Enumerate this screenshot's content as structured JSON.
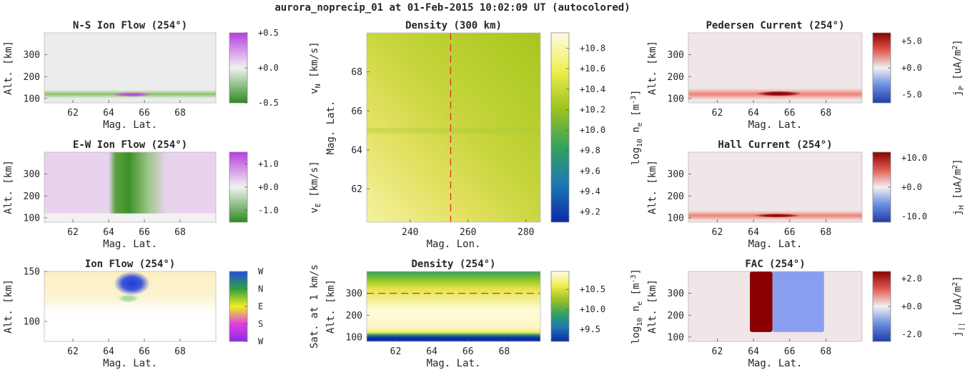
{
  "figure_title": "aurora_noprecip_01 at 01-Feb-2015 10:02:09 UT (autocolored)",
  "chart_data": [
    {
      "id": "ns-ion-flow",
      "type": "heatmap",
      "title": "N-S Ion Flow (254°)",
      "xlabel": "Mag. Lat.",
      "ylabel": "Alt. [km]",
      "xlim": [
        60.4,
        70
      ],
      "ylim": [
        80,
        400
      ],
      "xticks": [
        "62",
        "64",
        "66",
        "68"
      ],
      "xtick_values": [
        62,
        64,
        66,
        68
      ],
      "yticks": [
        "100",
        "200",
        "300"
      ],
      "ytick_values": [
        100,
        200,
        300
      ],
      "colorbar": {
        "label_main": "v",
        "label_sub": "N",
        "label_unit": " [km/s]",
        "range": [
          -0.5,
          0.5
        ],
        "ticks": [
          "+0.5",
          "+0.0",
          "-0.5"
        ],
        "tick_values": [
          0.5,
          0.0,
          -0.5
        ],
        "colors": [
          "#2e8b1e",
          "#f2f2f2",
          "#b63fe0"
        ]
      },
      "features": [
        {
          "shape": "band",
          "y": 120,
          "thickness": 6,
          "color": "#7fbf5a",
          "opacity": 0.9
        },
        {
          "shape": "blob",
          "x": 65.3,
          "y": 118,
          "rx": 1.1,
          "ry": 10,
          "color": "#c040e8",
          "opacity": 0.95
        }
      ],
      "background": "#ececec"
    },
    {
      "id": "ew-ion-flow",
      "type": "heatmap",
      "title": "E-W Ion Flow (254°)",
      "xlabel": "Mag. Lat.",
      "ylabel": "Alt. [km]",
      "xlim": [
        60.4,
        70
      ],
      "ylim": [
        80,
        400
      ],
      "xticks": [
        "62",
        "64",
        "66",
        "68"
      ],
      "xtick_values": [
        62,
        64,
        66,
        68
      ],
      "yticks": [
        "100",
        "200",
        "300"
      ],
      "ytick_values": [
        100,
        200,
        300
      ],
      "colorbar": {
        "label_main": "v",
        "label_sub": "E",
        "label_unit": " [km/s]",
        "range": [
          -1.5,
          1.5
        ],
        "ticks": [
          "+1.0",
          "+0.0",
          "-1.0"
        ],
        "tick_values": [
          1.0,
          0.0,
          -1.0
        ],
        "colors": [
          "#2e8b1e",
          "#f2f2f2",
          "#b63fe0"
        ]
      },
      "features": [
        {
          "shape": "region",
          "x0": 60.4,
          "x1": 70,
          "y0": 120,
          "y1": 400,
          "color": "#e8d2ee"
        },
        {
          "shape": "vgrad",
          "x0": 64,
          "x1": 67.2,
          "y0": 120,
          "y1": 400,
          "stops": [
            [
              "0",
              "#e8d2ee"
            ],
            [
              "0.12",
              "#5aa33e"
            ],
            [
              "0.35",
              "#3c8f28"
            ],
            [
              "0.7",
              "#9cc88a"
            ],
            [
              "1",
              "#e8d2ee"
            ]
          ]
        }
      ],
      "background": "#f2f2f2"
    },
    {
      "id": "ion-flow",
      "type": "heatmap",
      "title": "Ion Flow (254°)",
      "xlabel": "Mag. Lat.",
      "ylabel": "Alt. [km]",
      "xlim": [
        60.4,
        70
      ],
      "ylim": [
        80,
        150
      ],
      "xticks": [
        "62",
        "64",
        "66",
        "68"
      ],
      "xtick_values": [
        62,
        64,
        66,
        68
      ],
      "yticks": [
        "100",
        "150"
      ],
      "ytick_values": [
        100,
        150
      ],
      "colorbar": {
        "label_main": "Sat. at 1 km/s",
        "label_sub": "",
        "label_unit": "",
        "range": [
          0,
          4
        ],
        "ticks": [
          "W",
          "N",
          "E",
          "S",
          "W"
        ],
        "tick_values": [
          4,
          3,
          2,
          1,
          0
        ],
        "colors": [
          "#8a2be2",
          "#e040e0",
          "#f0f020",
          "#30a040",
          "#2050e0"
        ]
      },
      "features": [
        {
          "shape": "region",
          "x0": 60.4,
          "x1": 70,
          "y0": 128,
          "y1": 150,
          "color": "#faf0c0"
        },
        {
          "shape": "blob",
          "x": 65.3,
          "y": 138,
          "rx": 1.0,
          "ry": 12,
          "color": "#1e3cdc",
          "opacity": 1
        },
        {
          "shape": "blob",
          "x": 65.1,
          "y": 123,
          "rx": 0.6,
          "ry": 4,
          "color": "#8fd08f",
          "opacity": 0.8
        }
      ],
      "background": "#ffffff"
    },
    {
      "id": "density-300",
      "type": "heatmap",
      "title": "Density (300 km)",
      "xlabel": "Mag. Lon.",
      "ylabel": "Mag. Lat.",
      "xlim": [
        225,
        285
      ],
      "ylim": [
        60.3,
        70
      ],
      "xticks": [
        "240",
        "260",
        "280"
      ],
      "xtick_values": [
        240,
        260,
        280
      ],
      "yticks": [
        "62",
        "64",
        "66",
        "68"
      ],
      "ytick_values": [
        62,
        64,
        66,
        68
      ],
      "colorbar": {
        "label_main": "log",
        "label_sub": "10",
        "label_unit": " n",
        "label_sub2": "e",
        "label_unit2": " [m",
        "label_sup": "-3",
        "label_end": "]",
        "range": [
          9.1,
          10.95
        ],
        "ticks": [
          "+10.8",
          "+10.6",
          "+10.4",
          "+10.2",
          "+10.0",
          "+9.8",
          "+9.6",
          "+9.4",
          "+9.2"
        ],
        "tick_values": [
          10.8,
          10.6,
          10.4,
          10.2,
          10.0,
          9.8,
          9.6,
          9.4,
          9.2
        ],
        "colors": [
          "#0a2aa8",
          "#1d78b4",
          "#35a35c",
          "#9ec320",
          "#f0ee50",
          "#fffbe8"
        ]
      },
      "features": [
        {
          "shape": "dashline",
          "orient": "v",
          "value": 254,
          "color": "#e03030"
        }
      ],
      "background": "#c8d43a"
    },
    {
      "id": "density-254",
      "type": "heatmap",
      "title": "Density (254°)",
      "xlabel": "Mag. Lat.",
      "ylabel": "Alt. [km]",
      "xlim": [
        60.4,
        70
      ],
      "ylim": [
        80,
        400
      ],
      "xticks": [
        "62",
        "64",
        "66",
        "68"
      ],
      "xtick_values": [
        62,
        64,
        66,
        68
      ],
      "yticks": [
        "100",
        "200",
        "300"
      ],
      "ytick_values": [
        100,
        200,
        300
      ],
      "colorbar": {
        "label_main": "log",
        "label_sub": "10",
        "label_unit": " n",
        "label_sub2": "e",
        "label_unit2": " [m",
        "label_sup": "-3",
        "label_end": "]",
        "range": [
          9.2,
          10.95
        ],
        "ticks": [
          "+10.5",
          "+10.0",
          "+9.5"
        ],
        "tick_values": [
          10.5,
          10.0,
          9.5
        ],
        "colors": [
          "#0a2aa8",
          "#1d78b4",
          "#35a35c",
          "#9ec320",
          "#f0ee50",
          "#fffbe8"
        ]
      },
      "features": [
        {
          "shape": "dashline",
          "orient": "h",
          "value": 300,
          "color": "#e03030"
        }
      ],
      "background": "#ffffff"
    },
    {
      "id": "pedersen-current",
      "type": "heatmap",
      "title": "Pedersen Current (254°)",
      "xlabel": "Mag. Lat.",
      "ylabel": "Alt. [km]",
      "xlim": [
        60.4,
        70
      ],
      "ylim": [
        80,
        400
      ],
      "xticks": [
        "62",
        "64",
        "66",
        "68"
      ],
      "xtick_values": [
        62,
        64,
        66,
        68
      ],
      "yticks": [
        "100",
        "200",
        "300"
      ],
      "ytick_values": [
        100,
        200,
        300
      ],
      "colorbar": {
        "label_main": "j",
        "label_sub": "P",
        "label_unit": " [uA/m",
        "label_sup": "2",
        "label_end": "]",
        "range": [
          -6.5,
          6.5
        ],
        "ticks": [
          "+5.0",
          "+0.0",
          "-5.0"
        ],
        "tick_values": [
          5.0,
          0.0,
          -5.0
        ],
        "colors": [
          "#1f3ca8",
          "#6a8de0",
          "#f2f0f2",
          "#e05a50",
          "#8a0000"
        ]
      },
      "features": [
        {
          "shape": "band",
          "y": 120,
          "thickness": 8,
          "color": "#f07c6c",
          "opacity": 0.95
        },
        {
          "shape": "blob",
          "x": 65.4,
          "y": 122,
          "rx": 1.3,
          "ry": 12,
          "color": "#8a0000",
          "opacity": 1
        }
      ],
      "background": "#f0e6e8"
    },
    {
      "id": "hall-current",
      "type": "heatmap",
      "title": "Hall Current (254°)",
      "xlabel": "Mag. Lat.",
      "ylabel": "Alt. [km]",
      "xlim": [
        60.4,
        70
      ],
      "ylim": [
        80,
        400
      ],
      "xticks": [
        "62",
        "64",
        "66",
        "68"
      ],
      "xtick_values": [
        62,
        64,
        66,
        68
      ],
      "yticks": [
        "100",
        "200",
        "300"
      ],
      "ytick_values": [
        100,
        200,
        300
      ],
      "colorbar": {
        "label_main": "j",
        "label_sub": "H",
        "label_unit": " [uA/m",
        "label_sup": "2",
        "label_end": "]",
        "range": [
          -12,
          12
        ],
        "ticks": [
          "+10.0",
          "+0.0",
          "-10.0"
        ],
        "tick_values": [
          10.0,
          0.0,
          -10.0
        ],
        "colors": [
          "#1f3ca8",
          "#6a8de0",
          "#f2f0f2",
          "#e05a50",
          "#8a0000"
        ]
      },
      "features": [
        {
          "shape": "band",
          "y": 110,
          "thickness": 7,
          "color": "#f07c6c",
          "opacity": 0.95
        },
        {
          "shape": "blob",
          "x": 65.3,
          "y": 110,
          "rx": 1.3,
          "ry": 9,
          "color": "#8a0000",
          "opacity": 1
        }
      ],
      "background": "#f0e6e8"
    },
    {
      "id": "fac",
      "type": "heatmap",
      "title": "FAC (254°)",
      "xlabel": "Mag. Lat.",
      "ylabel": "Alt. [km]",
      "xlim": [
        60.4,
        70
      ],
      "ylim": [
        80,
        400
      ],
      "xticks": [
        "62",
        "64",
        "66",
        "68"
      ],
      "xtick_values": [
        62,
        64,
        66,
        68
      ],
      "yticks": [
        "100",
        "200",
        "300"
      ],
      "ytick_values": [
        100,
        200,
        300
      ],
      "colorbar": {
        "label_main": "j",
        "label_sub": "||",
        "label_unit": " [uA/m",
        "label_sup": "2",
        "label_end": "]",
        "range": [
          -2.5,
          2.5
        ],
        "ticks": [
          "+2.0",
          "+0.0",
          "-2.0"
        ],
        "tick_values": [
          2.0,
          0.0,
          -2.0
        ],
        "colors": [
          "#1f3ca8",
          "#6a8de0",
          "#f2f0f2",
          "#e05a50",
          "#8a0000"
        ]
      },
      "features": [
        {
          "shape": "rect",
          "x0": 63.8,
          "x1": 65.05,
          "y0": 123,
          "y1": 400,
          "color": "#8a0000"
        },
        {
          "shape": "rect",
          "x0": 65.05,
          "x1": 67.9,
          "y0": 123,
          "y1": 400,
          "color": "#8a9ef0"
        }
      ],
      "background": "#f0e6e8"
    }
  ]
}
